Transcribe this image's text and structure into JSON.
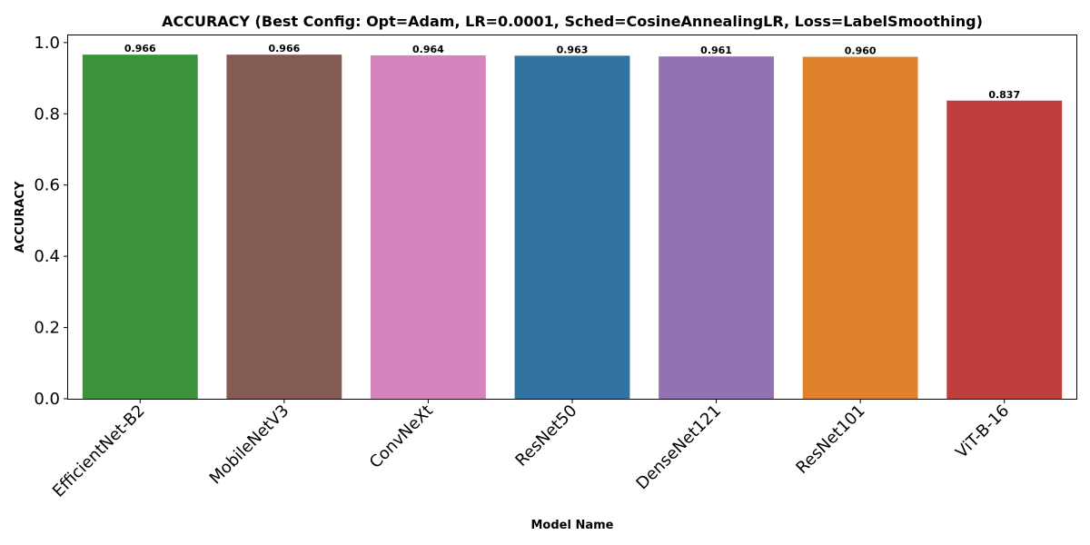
{
  "chart_data": {
    "type": "bar",
    "title": "ACCURACY (Best Config: Opt=Adam, LR=0.0001, Sched=CosineAnnealingLR, Loss=LabelSmoothing)",
    "xlabel": "Model Name",
    "ylabel": "ACCURACY",
    "ylim": [
      0,
      1.02
    ],
    "yticks": [
      "0.0",
      "0.2",
      "0.4",
      "0.6",
      "0.8",
      "1.0"
    ],
    "grid": false,
    "categories": [
      "EfficientNet-B2",
      "MobileNetV3",
      "ConvNeXt",
      "ResNet50",
      "DenseNet121",
      "ResNet101",
      "ViT-B-16"
    ],
    "values": [
      0.966,
      0.966,
      0.964,
      0.963,
      0.961,
      0.96,
      0.837
    ],
    "value_labels": [
      "0.966",
      "0.966",
      "0.964",
      "0.963",
      "0.961",
      "0.960",
      "0.837"
    ],
    "colors": [
      "#3a923a",
      "#845b53",
      "#d684bd",
      "#3274a1",
      "#9372b2",
      "#e1812c",
      "#c03d3e"
    ]
  }
}
